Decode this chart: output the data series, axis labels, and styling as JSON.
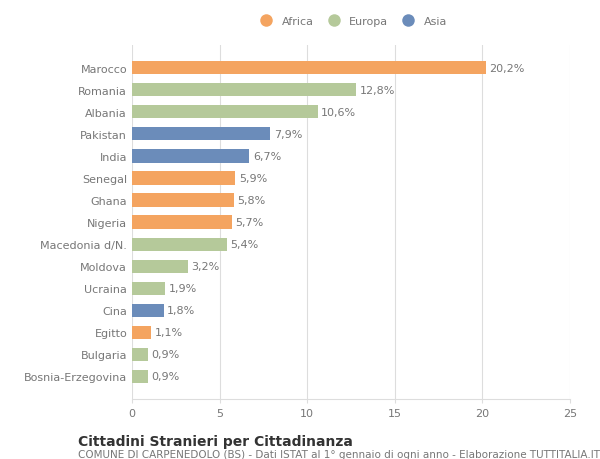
{
  "categories": [
    "Bosnia-Erzegovina",
    "Bulgaria",
    "Egitto",
    "Cina",
    "Ucraina",
    "Moldova",
    "Macedonia d/N.",
    "Nigeria",
    "Ghana",
    "Senegal",
    "India",
    "Pakistan",
    "Albania",
    "Romania",
    "Marocco"
  ],
  "values": [
    0.9,
    0.9,
    1.1,
    1.8,
    1.9,
    3.2,
    5.4,
    5.7,
    5.8,
    5.9,
    6.7,
    7.9,
    10.6,
    12.8,
    20.2
  ],
  "labels": [
    "0,9%",
    "0,9%",
    "1,1%",
    "1,8%",
    "1,9%",
    "3,2%",
    "5,4%",
    "5,7%",
    "5,8%",
    "5,9%",
    "6,7%",
    "7,9%",
    "10,6%",
    "12,8%",
    "20,2%"
  ],
  "colors": [
    "#b5c99a",
    "#b5c99a",
    "#f4a460",
    "#6b8cba",
    "#b5c99a",
    "#b5c99a",
    "#b5c99a",
    "#f4a460",
    "#f4a460",
    "#f4a460",
    "#6b8cba",
    "#6b8cba",
    "#b5c99a",
    "#b5c99a",
    "#f4a460"
  ],
  "legend_labels": [
    "Africa",
    "Europa",
    "Asia"
  ],
  "legend_colors": [
    "#f4a460",
    "#b5c99a",
    "#6b8cba"
  ],
  "title": "Cittadini Stranieri per Cittadinanza",
  "subtitle": "COMUNE DI CARPENEDOLO (BS) - Dati ISTAT al 1° gennaio di ogni anno - Elaborazione TUTTITALIA.IT",
  "xlim": [
    0,
    25
  ],
  "xticks": [
    0,
    5,
    10,
    15,
    20,
    25
  ],
  "bar_height": 0.6,
  "bg_color": "#ffffff",
  "grid_color": "#dddddd",
  "text_color": "#777777",
  "label_fontsize": 8,
  "tick_fontsize": 8,
  "title_fontsize": 10,
  "subtitle_fontsize": 7.5
}
